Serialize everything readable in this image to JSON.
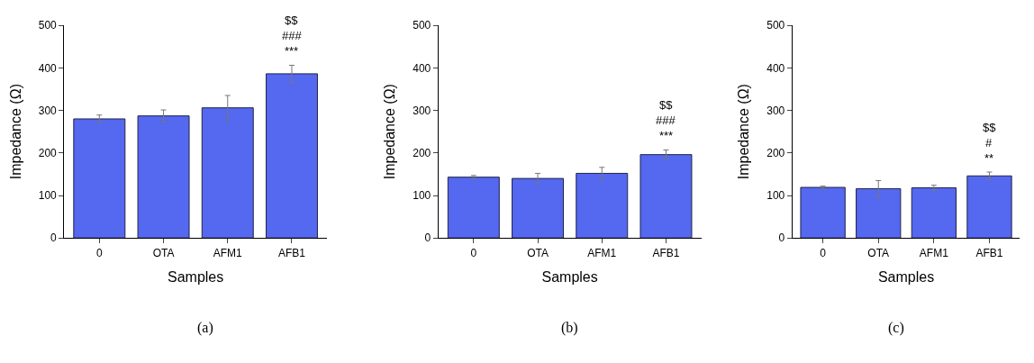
{
  "chart_data": [
    {
      "type": "bar",
      "subtitle": "(a)",
      "xlabel": "Samples",
      "ylabel": "Impedance (Ω)",
      "categories": [
        "0",
        "OTA",
        "AFM1",
        "AFB1"
      ],
      "values": [
        280,
        287,
        306,
        386
      ],
      "errors": [
        9,
        14,
        29,
        20
      ],
      "color": "#5468f0",
      "ylim": [
        0,
        500
      ],
      "yticks": [
        0,
        100,
        200,
        300,
        400,
        500
      ],
      "annotations": [
        "***",
        "###",
        "$$"
      ]
    },
    {
      "type": "bar",
      "subtitle": "(b)",
      "xlabel": "Samples",
      "ylabel": "Impedance (Ω)",
      "categories": [
        "0",
        "OTA",
        "AFM1",
        "AFB1"
      ],
      "values": [
        143,
        140,
        152,
        196
      ],
      "errors": [
        4,
        12,
        14,
        11
      ],
      "color": "#5468f0",
      "ylim": [
        0,
        500
      ],
      "yticks": [
        0,
        100,
        200,
        300,
        400,
        500
      ],
      "annotations": [
        "***",
        "###",
        "$$"
      ]
    },
    {
      "type": "bar",
      "subtitle": "(c)",
      "xlabel": "Samples",
      "ylabel": "Impedance (Ω)",
      "categories": [
        "0",
        "OTA",
        "AFM1",
        "AFB1"
      ],
      "values": [
        119,
        116,
        118,
        146
      ],
      "errors": [
        3,
        19,
        6,
        9
      ],
      "color": "#5468f0",
      "ylim": [
        0,
        500
      ],
      "yticks": [
        0,
        100,
        200,
        300,
        400,
        500
      ],
      "annotations": [
        "**",
        "#",
        "$$"
      ]
    }
  ]
}
